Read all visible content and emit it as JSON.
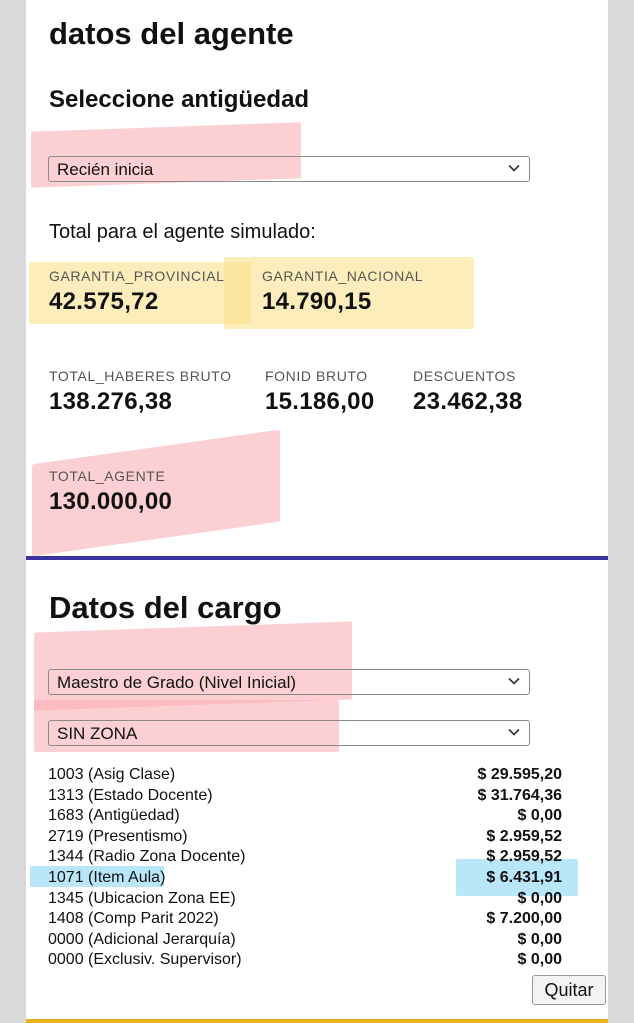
{
  "agent": {
    "title": "datos del agente",
    "antiguedad_label": "Seleccione antigüedad",
    "antiguedad_value": "Recién inicia",
    "total_heading": "Total para el agente simulado:",
    "garantia_provincial": {
      "label": "GARANTIA_PROVINCIAL",
      "value": "42.575,72"
    },
    "garantia_nacional": {
      "label": "GARANTIA_NACIONAL",
      "value": "14.790,15"
    },
    "total_haberes": {
      "label": "TOTAL_HABERES BRUTO",
      "value": "138.276,38"
    },
    "fonid": {
      "label": "FONID BRUTO",
      "value": "15.186,00"
    },
    "descuentos": {
      "label": "DESCUENTOS",
      "value": "23.462,38"
    },
    "total_agente": {
      "label": "TOTAL_AGENTE",
      "value": "130.000,00"
    }
  },
  "cargo": {
    "title": "Datos del cargo",
    "cargo_value": "Maestro de Grado (Nivel Inicial)",
    "zona_value": "SIN ZONA",
    "items": [
      {
        "name": "1003 (Asig Clase)",
        "amount": "$ 29.595,20"
      },
      {
        "name": "1313 (Estado Docente)",
        "amount": "$ 31.764,36"
      },
      {
        "name": "1683 (Antigüedad)",
        "amount": "$ 0,00"
      },
      {
        "name": "2719 (Presentismo)",
        "amount": "$ 2.959,52"
      },
      {
        "name": "1344 (Radio Zona Docente)",
        "amount": "$ 2.959,52"
      },
      {
        "name": "1071 (Item Aula)",
        "amount": "$ 6.431,91"
      },
      {
        "name": "1345 (Ubicacion Zona EE)",
        "amount": "$ 0,00"
      },
      {
        "name": "1408 (Comp Parit 2022)",
        "amount": "$ 7.200,00"
      },
      {
        "name": "0000 (Adicional Jerarquía)",
        "amount": "$ 0,00"
      },
      {
        "name": "0000 (Exclusiv. Supervisor)",
        "amount": "$ 0,00"
      }
    ],
    "quitar_label": "Quitar"
  },
  "icons": {
    "select_arrow": "chevron-down-icon"
  },
  "colors": {
    "divider_top": "#3a34a0",
    "divider_bottom": "#e8b21c",
    "highlight_pink": "#faaaaf",
    "highlight_yellow": "#fce18c",
    "highlight_blue": "#82d2f5"
  }
}
